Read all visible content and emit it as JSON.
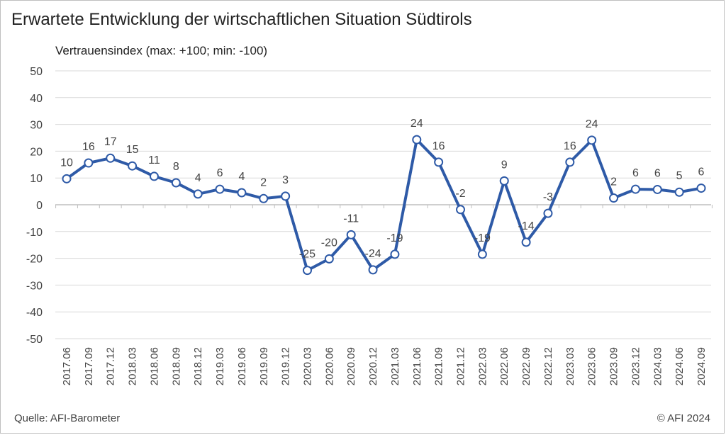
{
  "chart_data": {
    "type": "line",
    "title": "Erwartete Entwicklung der wirtschaftlichen Situation Südtirols",
    "ylabel": "Vertrauensindex (max: +100; min: -100)",
    "xlabel": "",
    "ylim": [
      -50,
      50
    ],
    "yticks": [
      50,
      40,
      30,
      20,
      10,
      0,
      -10,
      -20,
      -30,
      -40,
      -50
    ],
    "grid": true,
    "legend": "none",
    "line_color": "#2e5aa7",
    "categories": [
      "2017.06",
      "2017.09",
      "2017.12",
      "2018.03",
      "2018.06",
      "2018.09",
      "2018.12",
      "2019.03",
      "2019.06",
      "2019.09",
      "2019.12",
      "2020.03",
      "2020.06",
      "2020.09",
      "2020.12",
      "2021.03",
      "2021.06",
      "2021.09",
      "2021.12",
      "2022.03",
      "2022.06",
      "2022.09",
      "2022.12",
      "2023.03",
      "2023.06",
      "2023.09",
      "2023.12",
      "2024.03",
      "2024.06",
      "2024.09"
    ],
    "values": [
      9.7,
      15.6,
      17.4,
      14.5,
      10.6,
      8.2,
      4.0,
      5.8,
      4.5,
      2.3,
      3.2,
      -24.5,
      -20.2,
      -11.2,
      -24.3,
      -18.5,
      24.3,
      15.9,
      -1.8,
      -18.5,
      8.9,
      -14.0,
      -3.2,
      15.9,
      24.1,
      2.5,
      5.8,
      5.7,
      4.7,
      6.2
    ],
    "labels": [
      "10",
      "16",
      "17",
      "15",
      "11",
      "8",
      "4",
      "6",
      "4",
      "2",
      "3",
      "-25",
      "-20",
      "-11",
      "-24",
      "-19",
      "24",
      "16",
      "-2",
      "-19",
      "9",
      "-14",
      "-3",
      "16",
      "24",
      "2",
      "6",
      "6",
      "5",
      "6"
    ]
  },
  "footer": {
    "source": "Quelle: AFI-Barometer",
    "copyright": "© AFI 2024"
  }
}
